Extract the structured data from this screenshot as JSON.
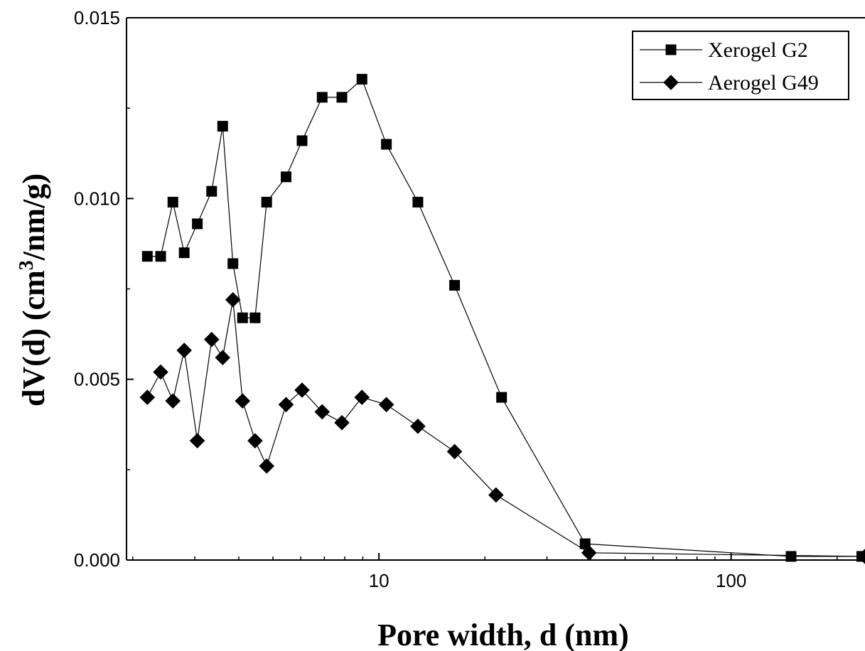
{
  "chart_data": {
    "type": "scatter",
    "title": "",
    "xlabel": "Pore width, d (nm)",
    "ylabel_prefix": "dV(d) (cm",
    "ylabel_sup": "3",
    "ylabel_suffix": "/nm/g)",
    "xscale": "log",
    "xlim": [
      1.92,
      240
    ],
    "ylim": [
      0,
      0.015
    ],
    "x_ticks": [
      10,
      100
    ],
    "x_tick_labels": [
      "10",
      "100"
    ],
    "y_ticks": [
      0,
      0.005,
      0.01,
      0.015
    ],
    "y_tick_labels": [
      "0.000",
      "0.005",
      "0.010",
      "0.015"
    ],
    "grid": false,
    "legend_position": "top-right",
    "series": [
      {
        "name": "Xerogel G2",
        "marker": "square",
        "color": "#000000",
        "x": [
          2.2,
          2.4,
          2.6,
          2.8,
          3.05,
          3.35,
          3.6,
          3.85,
          4.1,
          4.45,
          4.8,
          5.45,
          6.05,
          6.9,
          7.85,
          8.95,
          10.5,
          12.9,
          16.4,
          22.3,
          38.5,
          148,
          235
        ],
        "y": [
          0.0084,
          0.0084,
          0.0099,
          0.0085,
          0.0093,
          0.0102,
          0.012,
          0.0082,
          0.0067,
          0.0067,
          0.0099,
          0.0106,
          0.0116,
          0.0128,
          0.0128,
          0.0133,
          0.0115,
          0.0099,
          0.0076,
          0.0045,
          0.00045,
          0.0001,
          0.0001
        ]
      },
      {
        "name": "Aerogel G49",
        "marker": "diamond",
        "color": "#000000",
        "x": [
          2.2,
          2.4,
          2.6,
          2.8,
          3.05,
          3.35,
          3.6,
          3.85,
          4.1,
          4.45,
          4.8,
          5.45,
          6.05,
          6.9,
          7.85,
          8.95,
          10.5,
          12.9,
          16.4,
          21.5,
          39.5,
          240
        ],
        "y": [
          0.0045,
          0.0052,
          0.0044,
          0.0058,
          0.0033,
          0.0061,
          0.0056,
          0.0072,
          0.0044,
          0.0033,
          0.0026,
          0.0043,
          0.0047,
          0.0041,
          0.0038,
          0.0045,
          0.0043,
          0.0037,
          0.003,
          0.0018,
          0.0002,
          0.0001
        ]
      }
    ]
  }
}
